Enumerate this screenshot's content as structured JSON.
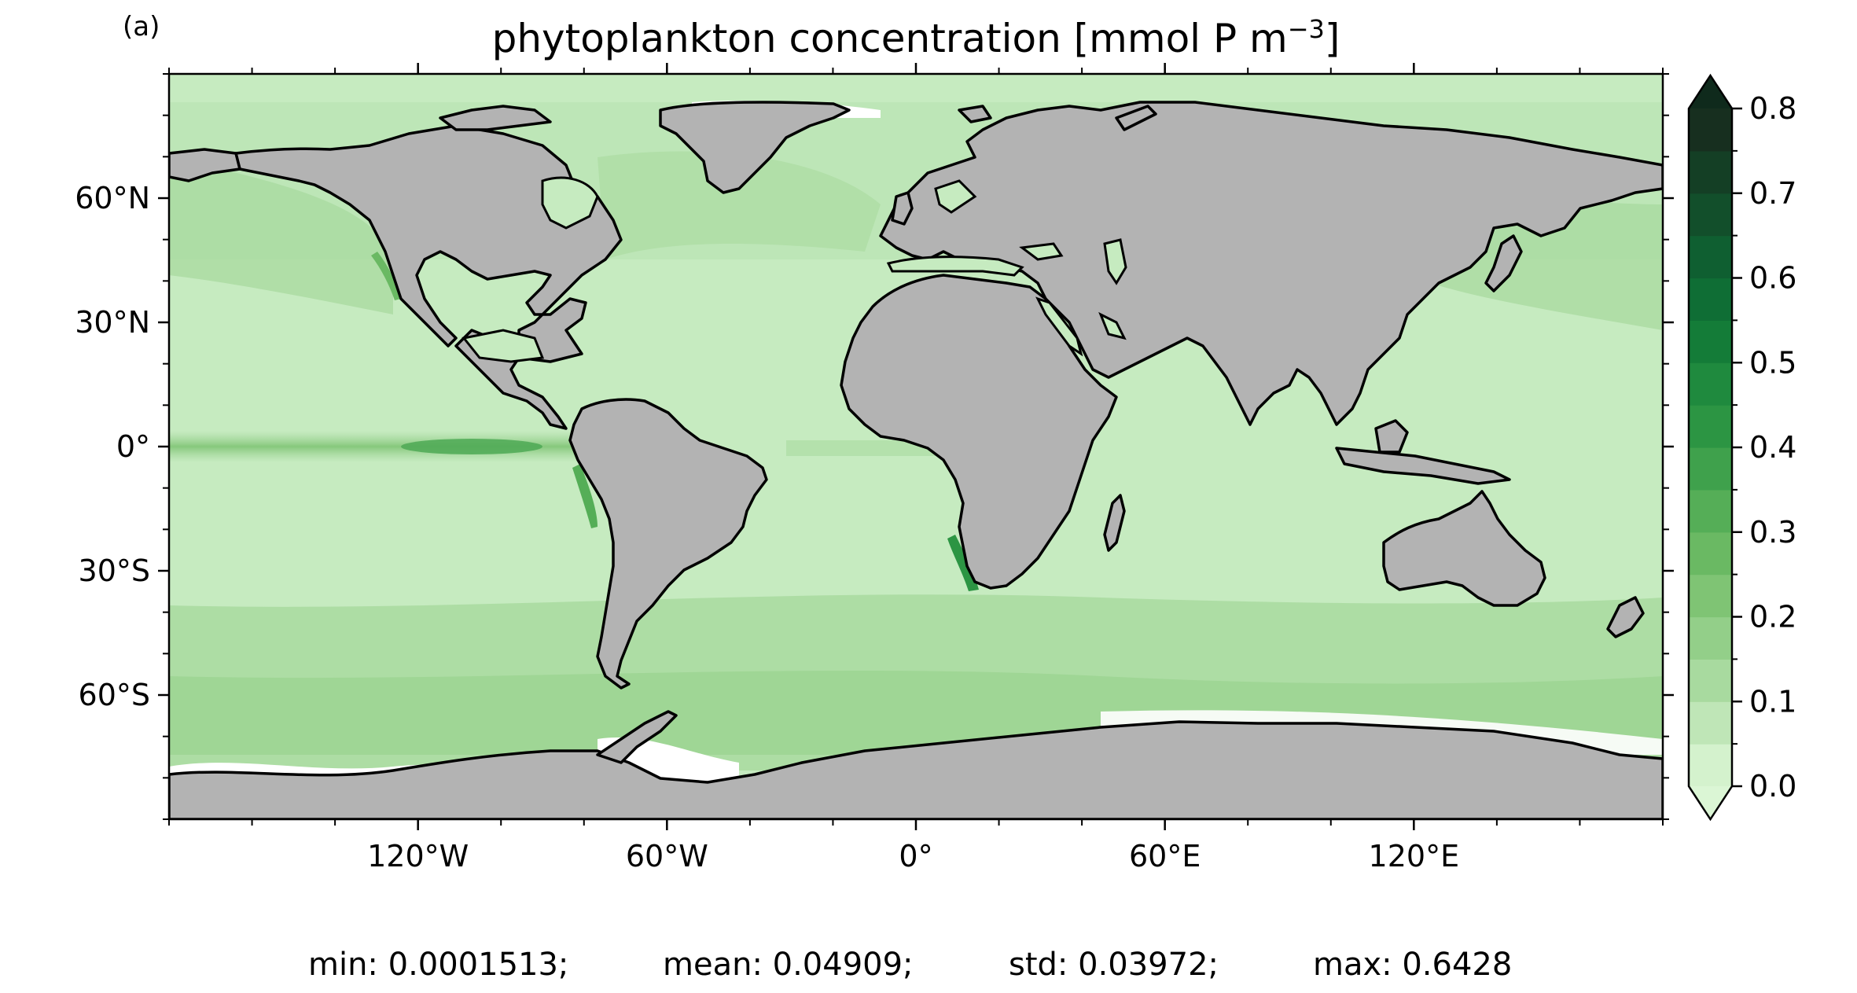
{
  "panel_label": "(a)",
  "title": {
    "text": "phytoplankton concentration [mmol P m",
    "superscript": "−3",
    "closing": "]"
  },
  "colors": {
    "land": "#b3b3b3",
    "coast": "#000000",
    "ocean_base": "#c6ebc0",
    "ocean_mid": "#a3d69c",
    "colormap": [
      "#d4f2cd",
      "#bfe6b7",
      "#a8da9f",
      "#93cf89",
      "#7fc474",
      "#6ab963",
      "#55ae57",
      "#3fa14c",
      "#2c9543",
      "#1f8a3e",
      "#147c38",
      "#0f6e35",
      "#0f5f31",
      "#124f2b",
      "#143f25",
      "#172f1f"
    ]
  },
  "map": {
    "projection": "PlateCarree",
    "lon_range": [
      -180,
      180
    ],
    "lat_range": [
      -90,
      90
    ],
    "x_ticks": [
      "120°W",
      "60°W",
      "0°",
      "60°E",
      "120°E"
    ],
    "y_ticks": [
      "60°N",
      "30°N",
      "0°",
      "30°S",
      "60°S"
    ]
  },
  "colorbar": {
    "min": 0.0,
    "max": 0.8,
    "levels_step": 0.05,
    "extend": "both",
    "tick_labels": [
      "0.0",
      "0.1",
      "0.2",
      "0.3",
      "0.4",
      "0.5",
      "0.6",
      "0.7",
      "0.8"
    ]
  },
  "stats": {
    "min": "min: 0.0001513;",
    "mean": "mean: 0.04909;",
    "std": "std: 0.03972;",
    "max": "max: 0.6428"
  }
}
